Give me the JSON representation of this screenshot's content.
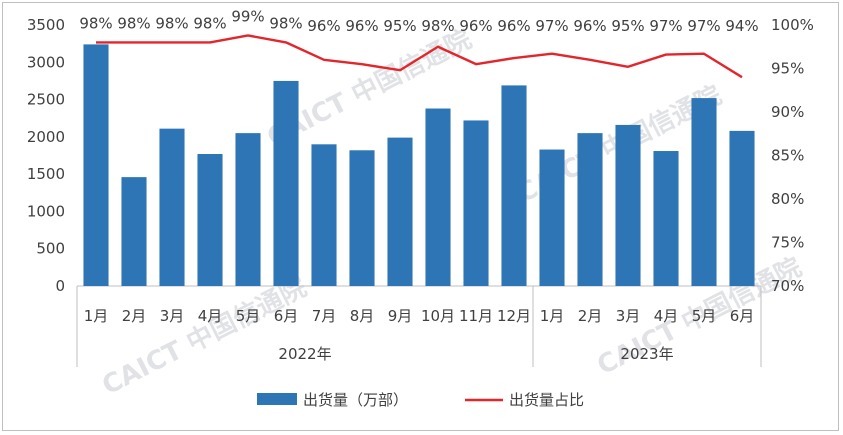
{
  "chart_data": {
    "type": "bar",
    "title": "",
    "years": [
      {
        "label": "2022年",
        "months": [
          "1月",
          "2月",
          "3月",
          "4月",
          "5月",
          "6月",
          "7月",
          "8月",
          "9月",
          "10月",
          "11月",
          "12月"
        ]
      },
      {
        "label": "2023年",
        "months": [
          "1月",
          "2月",
          "3月",
          "4月",
          "5月",
          "6月"
        ]
      }
    ],
    "categories": [
      "1月",
      "2月",
      "3月",
      "4月",
      "5月",
      "6月",
      "7月",
      "8月",
      "9月",
      "10月",
      "11月",
      "12月",
      "1月",
      "2月",
      "3月",
      "4月",
      "5月",
      "6月"
    ],
    "series": [
      {
        "name": "出货量（万部）",
        "type": "bar",
        "axis": "left",
        "values": [
          3240,
          1460,
          2110,
          1770,
          2050,
          2750,
          1900,
          1820,
          1990,
          2380,
          2220,
          2690,
          1830,
          2050,
          2160,
          1810,
          2520,
          2080
        ]
      },
      {
        "name": "出货量占比",
        "type": "line",
        "axis": "right",
        "values": [
          98.0,
          98.0,
          98.0,
          98.0,
          98.8,
          98.0,
          96.0,
          95.5,
          94.8,
          97.5,
          95.5,
          96.2,
          96.7,
          96.0,
          95.2,
          96.6,
          96.7,
          94.0
        ],
        "labels": [
          "98%",
          "98%",
          "98%",
          "98%",
          "99%",
          "98%",
          "96%",
          "96%",
          "95%",
          "98%",
          "96%",
          "96%",
          "97%",
          "96%",
          "95%",
          "97%",
          "97%",
          "94%"
        ]
      }
    ],
    "y_left": {
      "min": 0,
      "max": 3500,
      "ticks": [
        "0",
        "500",
        "1000",
        "1500",
        "2000",
        "2500",
        "3000",
        "3500"
      ]
    },
    "y_right": {
      "min": 70,
      "max": 100,
      "ticks": [
        "70%",
        "75%",
        "80%",
        "85%",
        "90%",
        "95%",
        "100%"
      ]
    },
    "grid": false,
    "legend_position": "bottom",
    "colors": {
      "bar": "#2e75b6",
      "line": "#e3262b",
      "axis": "#bfbfbf",
      "text": "#404040"
    }
  },
  "watermark": {
    "text": "CAICT 中国信通院"
  }
}
